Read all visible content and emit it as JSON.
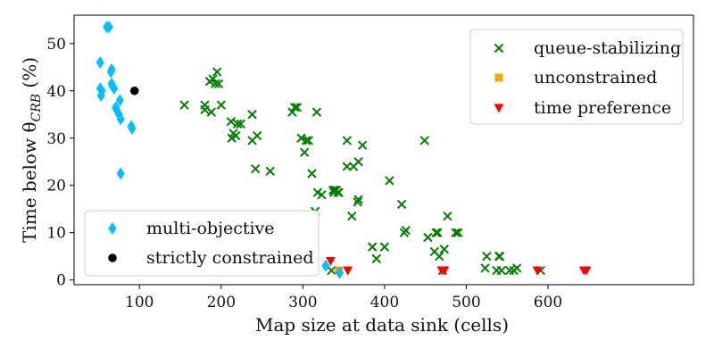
{
  "chart_data": {
    "type": "scatter",
    "xlabel": "Map size at data sink (cells)",
    "ylabel": "Time below θ",
    "ylabel_subscript": "CRB",
    "ylabel_unit": " (%)",
    "xlim": [
      20,
      778
    ],
    "ylim": [
      -1,
      56
    ],
    "x_ticks": [
      100,
      200,
      300,
      400,
      500,
      600
    ],
    "y_ticks": [
      0,
      10,
      20,
      30,
      40,
      50
    ],
    "grid": false,
    "legends": [
      {
        "placement": "top-right",
        "entries": [
          "queue-stabilizing",
          "unconstrained",
          "time preference"
        ]
      },
      {
        "placement": "bottom-left",
        "entries": [
          "multi-objective",
          "strictly constrained"
        ]
      }
    ],
    "series": [
      {
        "name": "queue-stabilizing",
        "marker": "x",
        "color": "#008000",
        "points": [
          [
            155,
            37
          ],
          [
            180,
            37
          ],
          [
            180,
            36
          ],
          [
            186,
            42
          ],
          [
            188,
            35.5
          ],
          [
            190,
            42.5
          ],
          [
            193,
            41.5
          ],
          [
            195,
            44
          ],
          [
            197,
            41.5
          ],
          [
            200,
            37
          ],
          [
            212,
            33.5
          ],
          [
            213,
            30
          ],
          [
            215,
            31
          ],
          [
            218,
            30.5
          ],
          [
            220,
            33
          ],
          [
            224,
            33
          ],
          [
            238,
            35
          ],
          [
            238,
            29.5
          ],
          [
            242,
            23.5
          ],
          [
            244,
            30.5
          ],
          [
            260,
            23
          ],
          [
            287,
            35.5
          ],
          [
            290,
            36.5
          ],
          [
            293,
            36.5
          ],
          [
            298,
            30
          ],
          [
            302,
            27
          ],
          [
            304,
            29.5
          ],
          [
            307,
            29.5
          ],
          [
            311,
            22.5
          ],
          [
            315,
            14.5
          ],
          [
            317,
            35.5
          ],
          [
            318,
            18.5
          ],
          [
            323,
            18
          ],
          [
            302,
            2
          ],
          [
            337,
            19
          ],
          [
            338,
            18.5
          ],
          [
            339,
            19
          ],
          [
            341,
            19
          ],
          [
            343,
            18.5
          ],
          [
            344,
            18.5
          ],
          [
            354,
            29.5
          ],
          [
            354,
            24
          ],
          [
            360,
            13.5
          ],
          [
            362,
            24
          ],
          [
            367,
            16.5
          ],
          [
            368,
            17
          ],
          [
            368,
            25
          ],
          [
            373,
            28.5
          ],
          [
            385,
            7
          ],
          [
            390,
            4.5
          ],
          [
            400,
            7
          ],
          [
            406,
            21
          ],
          [
            421,
            16
          ],
          [
            424,
            10
          ],
          [
            426,
            10.5
          ],
          [
            449,
            29.5
          ],
          [
            453,
            9
          ],
          [
            461,
            6
          ],
          [
            463,
            10
          ],
          [
            465,
            10
          ],
          [
            467,
            5
          ],
          [
            471,
            2
          ],
          [
            473,
            6.5
          ],
          [
            477,
            13.5
          ],
          [
            487,
            10
          ],
          [
            490,
            10
          ],
          [
            523,
            2.5
          ],
          [
            525,
            5
          ],
          [
            537,
            2
          ],
          [
            540,
            5
          ],
          [
            541,
            5
          ],
          [
            543,
            2
          ],
          [
            553,
            2
          ],
          [
            558,
            2
          ],
          [
            562,
            2.5
          ],
          [
            591,
            2
          ],
          [
            335,
            2
          ]
        ]
      },
      {
        "name": "unconstrained",
        "marker": "square",
        "color": "#f5a500",
        "points": [
          [
            344,
            2
          ]
        ]
      },
      {
        "name": "time preference",
        "marker": "triangle-down",
        "color": "#ff0000",
        "points": [
          [
            334,
            4
          ],
          [
            355,
            2
          ],
          [
            470,
            2
          ],
          [
            473,
            2
          ],
          [
            587,
            2
          ],
          [
            644,
            2
          ],
          [
            647,
            2
          ]
        ]
      },
      {
        "name": "multi-objective",
        "marker": "thin-diamond",
        "color": "#00bfff",
        "points": [
          [
            60,
            53.5
          ],
          [
            63,
            53.5
          ],
          [
            52,
            46
          ],
          [
            52,
            40.5
          ],
          [
            53,
            39
          ],
          [
            54,
            40
          ],
          [
            65,
            44
          ],
          [
            66,
            44.5
          ],
          [
            66,
            41.5
          ],
          [
            67,
            41
          ],
          [
            69,
            40.5
          ],
          [
            71,
            36.5
          ],
          [
            72,
            36
          ],
          [
            75,
            35
          ],
          [
            76,
            38
          ],
          [
            77,
            34
          ],
          [
            90,
            32.5
          ],
          [
            91,
            32
          ],
          [
            77,
            22.5
          ],
          [
            141,
            2
          ],
          [
            244,
            3.5
          ],
          [
            328,
            3
          ],
          [
            345,
            1.5
          ]
        ]
      },
      {
        "name": "strictly constrained",
        "marker": "circle",
        "color": "#000000",
        "points": [
          [
            94,
            40
          ]
        ]
      }
    ]
  }
}
